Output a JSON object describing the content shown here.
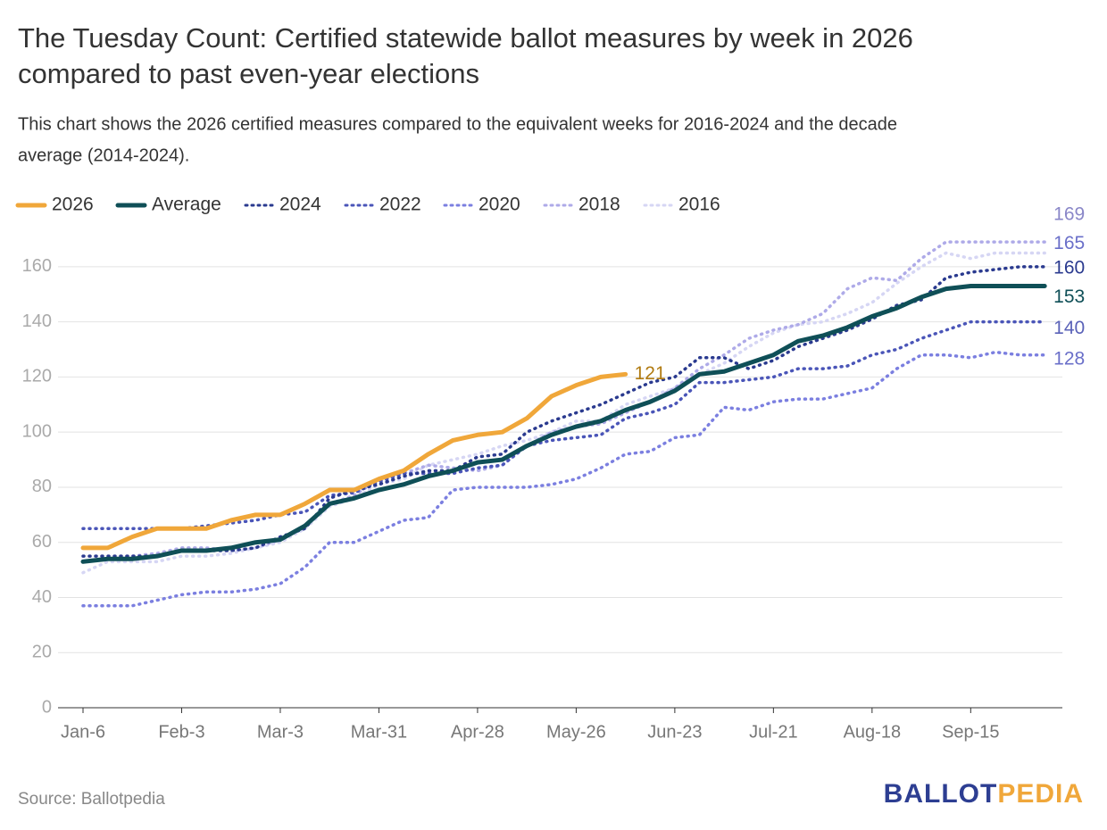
{
  "chart_data": {
    "type": "line",
    "title": [
      "The Tuesday Count: Certified statewide ballot measures by week in 2026",
      "compared to past even-year elections"
    ],
    "subtitle": [
      "This chart shows the 2026 certified measures compared to the equivalent weeks for 2016-2024 and the decade",
      "average (2014-2024)."
    ],
    "source": "Source: Ballotpedia",
    "logo": [
      "BALLOT",
      "PEDIA"
    ],
    "categories": [
      "Jan-6",
      null,
      null,
      null,
      "Feb-3",
      null,
      null,
      null,
      "Mar-3",
      null,
      null,
      null,
      "Mar-31",
      null,
      null,
      null,
      "Apr-28",
      null,
      null,
      null,
      "May-26",
      null,
      null,
      null,
      "Jun-23",
      null,
      null,
      null,
      "Jul-21",
      null,
      null,
      null,
      "Aug-18",
      null,
      null,
      null,
      "Sep-15",
      null,
      null,
      null
    ],
    "ylim": [
      0,
      170
    ],
    "yticks": [
      0,
      20,
      40,
      60,
      80,
      100,
      120,
      140,
      160
    ],
    "grid": true,
    "series": [
      {
        "name": "2026",
        "color": "#f0a73a",
        "style": "solid",
        "values": [
          58,
          58,
          62,
          65,
          65,
          65,
          68,
          70,
          70,
          74,
          79,
          79,
          83,
          86,
          92,
          97,
          99,
          100,
          105,
          113,
          117,
          120,
          121,
          null,
          null,
          null,
          null,
          null,
          null,
          null,
          null,
          null,
          null,
          null,
          null,
          null,
          null,
          null,
          null,
          null
        ]
      },
      {
        "name": "Average",
        "color": "#0f4f57",
        "style": "solid",
        "values": [
          53,
          54,
          54,
          55,
          57,
          57,
          58,
          60,
          61,
          66,
          74,
          76,
          79,
          81,
          84,
          86,
          89,
          90,
          95,
          99,
          102,
          104,
          108,
          111,
          115,
          121,
          122,
          125,
          128,
          133,
          135,
          138,
          142,
          145,
          149,
          152,
          153,
          153,
          153,
          153
        ]
      },
      {
        "name": "2024",
        "color": "#2a3a8f",
        "style": "dotted",
        "values": [
          55,
          55,
          55,
          55,
          57,
          57,
          57,
          58,
          62,
          65,
          76,
          79,
          81,
          84,
          86,
          86,
          91,
          92,
          100,
          104,
          107,
          110,
          114,
          118,
          120,
          127,
          127,
          123,
          126,
          131,
          134,
          137,
          141,
          146,
          148,
          156,
          158,
          159,
          160,
          160
        ]
      },
      {
        "name": "2022",
        "color": "#4a55b8",
        "style": "dotted",
        "values": [
          65,
          65,
          65,
          65,
          65,
          66,
          67,
          68,
          70,
          71,
          77,
          78,
          82,
          85,
          85,
          85,
          87,
          88,
          95,
          97,
          98,
          99,
          105,
          107,
          110,
          118,
          118,
          119,
          120,
          123,
          123,
          124,
          128,
          130,
          134,
          137,
          140,
          140,
          140,
          140
        ]
      },
      {
        "name": "2020",
        "color": "#7b7fe0",
        "style": "dotted",
        "values": [
          37,
          37,
          37,
          39,
          41,
          42,
          42,
          43,
          45,
          51,
          60,
          60,
          64,
          68,
          69,
          79,
          80,
          80,
          80,
          81,
          83,
          87,
          92,
          93,
          98,
          99,
          109,
          108,
          111,
          112,
          112,
          114,
          116,
          123,
          128,
          128,
          127,
          129,
          128,
          128
        ]
      },
      {
        "name": "2018",
        "color": "#aeaae8",
        "style": "dotted",
        "values": [
          53,
          54,
          55,
          56,
          58,
          58,
          57,
          58,
          61,
          66,
          74,
          77,
          83,
          85,
          88,
          87,
          86,
          88,
          95,
          100,
          102,
          103,
          107,
          111,
          116,
          123,
          128,
          134,
          137,
          139,
          143,
          152,
          156,
          155,
          163,
          169,
          169,
          169,
          169,
          169
        ]
      },
      {
        "name": "2016",
        "color": "#d6d6f4",
        "style": "dotted",
        "values": [
          49,
          53,
          53,
          53,
          55,
          55,
          56,
          58,
          60,
          65,
          73,
          76,
          81,
          83,
          88,
          90,
          92,
          95,
          97,
          100,
          104,
          104,
          110,
          113,
          116,
          121,
          125,
          131,
          136,
          139,
          140,
          143,
          147,
          154,
          160,
          165,
          163,
          165,
          165,
          165
        ]
      }
    ]
  }
}
